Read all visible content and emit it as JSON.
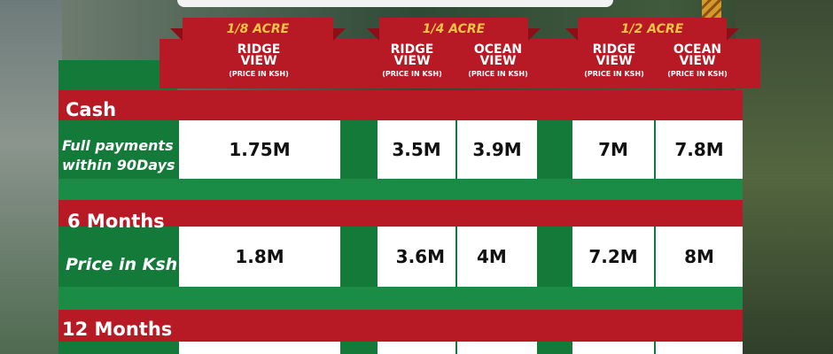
{
  "tabs": [
    {
      "label": "1/8 ACRE"
    },
    {
      "label": "1/4 ACRE"
    },
    {
      "label": "1/2 ACRE"
    }
  ],
  "columns": [
    {
      "title_line1": "RIDGE",
      "title_line2": "VIEW",
      "sub": "(PRICE IN KSH)"
    },
    {
      "title_line1": "RIDGE",
      "title_line2": "VIEW",
      "sub": "(PRICE IN KSH)"
    },
    {
      "title_line1": "OCEAN",
      "title_line2": "VIEW",
      "sub": "(PRICE IN KSH)"
    },
    {
      "title_line1": "RIDGE",
      "title_line2": "VIEW",
      "sub": "(PRICE IN KSH)"
    },
    {
      "title_line1": "OCEAN",
      "title_line2": "VIEW",
      "sub": "(PRICE IN KSH)"
    }
  ],
  "rows": [
    {
      "label": "Cash",
      "sub_line1": "Full payments",
      "sub_line2": "within 90Days",
      "values": [
        "1.75M",
        "3.5M",
        "3.9M",
        "7M",
        "7.8M"
      ]
    },
    {
      "label": "6 Months",
      "sub_line1": "Price in Ksh",
      "values": [
        "1.8M",
        "3.6M",
        "4M",
        "7.2M",
        "8M"
      ]
    },
    {
      "label": "12 Months"
    }
  ],
  "colors": {
    "red": "#b71a24",
    "green": "#137a3a",
    "gold": "#f6c343"
  }
}
